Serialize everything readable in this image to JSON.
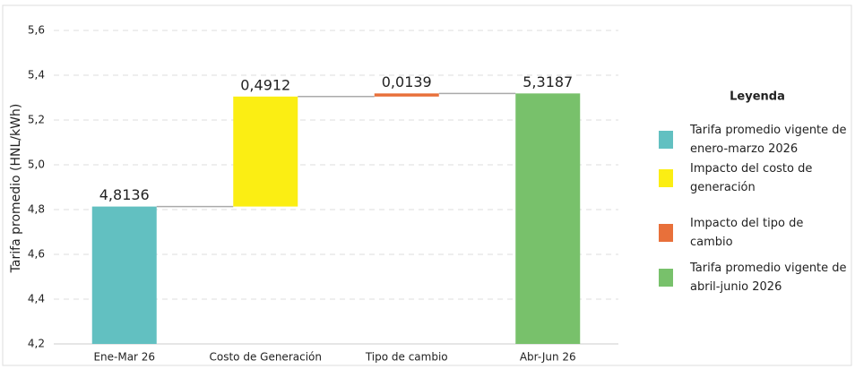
{
  "chart_data": {
    "type": "waterfall",
    "y_label": "Tarifa promedio (HNL/kWh)",
    "categories": [
      "Ene-Mar 26",
      "Costo de Generación",
      "Tipo de cambio",
      "Abr-Jun 26"
    ],
    "values": [
      4.8136,
      0.4912,
      0.0139,
      5.3187
    ],
    "value_labels": [
      "4,8136",
      "0,4912",
      "0,0139",
      "5,3187"
    ],
    "measure": [
      "absolute",
      "relative",
      "relative",
      "total"
    ],
    "colors": [
      "#62c0c1",
      "#fbee13",
      "#e8703a",
      "#78c16b"
    ],
    "ylim": [
      4.2,
      5.6
    ],
    "yticks": [
      {
        "value": 4.2,
        "label": "4,2"
      },
      {
        "value": 4.4,
        "label": "4,4"
      },
      {
        "value": 4.6,
        "label": "4,6"
      },
      {
        "value": 4.8,
        "label": "4,8"
      },
      {
        "value": 5.0,
        "label": "5,0"
      },
      {
        "value": 5.2,
        "label": "5,2"
      },
      {
        "value": 5.4,
        "label": "5,4"
      },
      {
        "value": 5.6,
        "label": "5,6"
      }
    ],
    "grid": true,
    "legend": {
      "title": "Leyenda",
      "items": [
        "Tarifa promedio vigente de enero-marzo 2026",
        "Impacto del costo de generación",
        "Impacto del tipo de cambio",
        "Tarifa promedio vigente de abril-junio 2026"
      ]
    }
  }
}
